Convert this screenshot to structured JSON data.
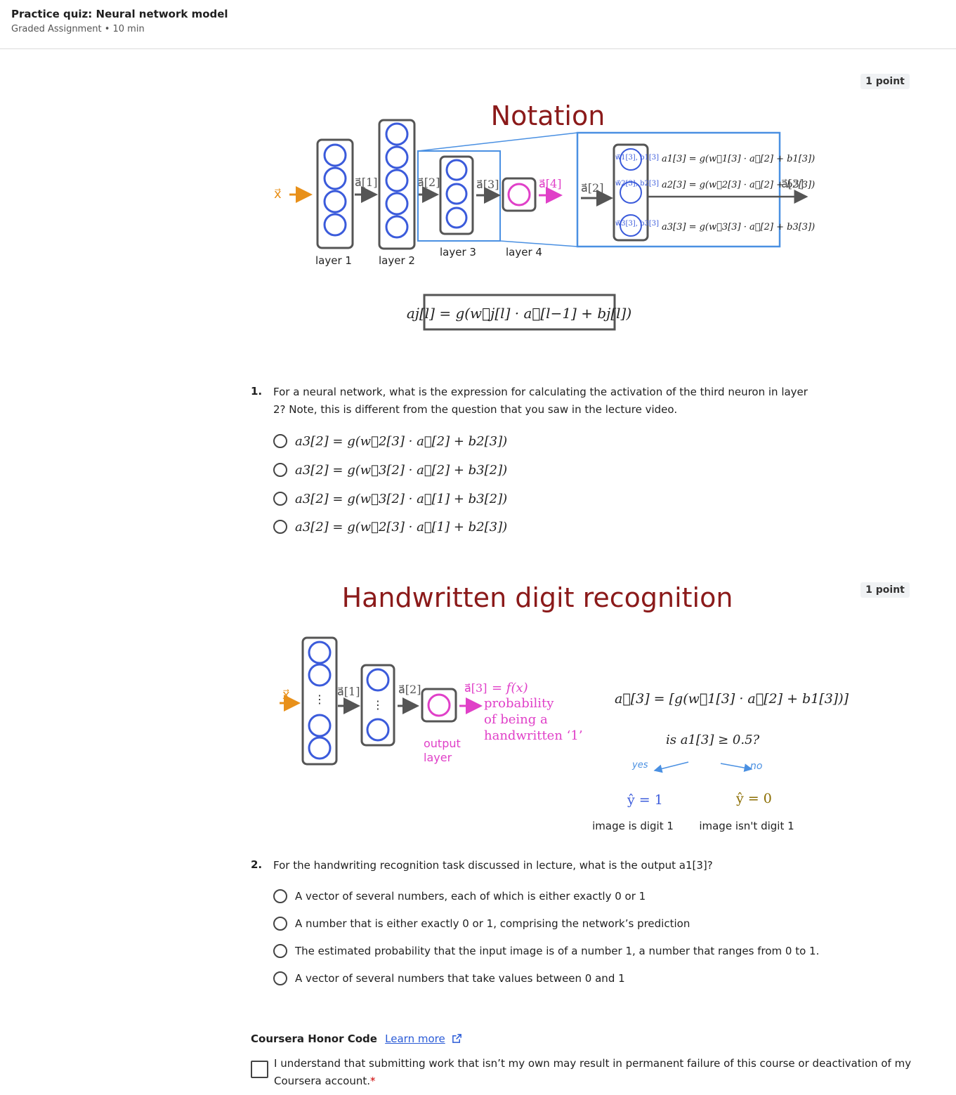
{
  "header": {
    "title": "Practice quiz: Neural network model",
    "subtitle": "Graded Assignment • 10 min"
  },
  "q1": {
    "points": "1 point",
    "number": "1.",
    "text": "For a neural network, what is the expression for calculating the activation of the third neuron in layer 2? Note, this is different from the question that you saw in the lecture video.",
    "figure": {
      "title": "Notation",
      "input_label": "x⃗",
      "arrow_labels": [
        "a⃗[1]",
        "a⃗[2]",
        "a⃗[3]",
        "a⃗[4]"
      ],
      "layer_labels": [
        "layer 1",
        "layer 2",
        "layer 3",
        "layer 4"
      ],
      "zoom_in": "a⃗[2]",
      "zoom_out": "a⃗[3]",
      "neuron_params": [
        "w⃗1[3], b1[3]",
        "w⃗2[3], b2[3]",
        "w⃗3[3], b3[3]"
      ],
      "zoom_eqs": [
        "a1[3] = g(w⃗1[3] · a⃗[2] + b1[3])",
        "a2[3] = g(w⃗2[3] · a⃗[2] + b2[3])",
        "a3[3] = g(w⃗3[3] · a⃗[2] + b3[3])"
      ],
      "general_eq": "aj[l] = g(w⃗j[l] · a⃗[l−1] + bj[l])"
    },
    "options": [
      "a3[2] = g(w⃗2[3] · a⃗[2] + b2[3])",
      "a3[2] = g(w⃗3[2] · a⃗[2] + b3[2])",
      "a3[2] = g(w⃗3[2] · a⃗[1] + b3[2])",
      "a3[2] = g(w⃗2[3] · a⃗[1] + b2[3])"
    ]
  },
  "q2": {
    "points": "1 point",
    "number": "2.",
    "text": "For the handwriting recognition task discussed in lecture, what is the output a1[3]?",
    "figure": {
      "title": "Handwritten digit recognition",
      "input_label": "x⃗",
      "arrow_labels": [
        "a⃗[1]",
        "a⃗[2]",
        "a⃗[3]"
      ],
      "fx": "= f(x)",
      "prob_lines": [
        "probability",
        "of being a",
        "handwritten ‘1’"
      ],
      "output_layer": [
        "output",
        "layer"
      ],
      "eq": "a⃗[3] = [g(w⃗1[3] · a⃗[2] + b1[3])]",
      "question": "is a1[3] ≥ 0.5?",
      "yes": "yes",
      "no": "no",
      "yhat1": "ŷ = 1",
      "yhat0": "ŷ = 0",
      "is_digit": "image is digit 1",
      "isnt_digit": "image isn't digit 1"
    },
    "options": [
      "A vector of several numbers, each of which is either exactly 0 or 1",
      "A number that is either exactly 0 or 1, comprising the network’s prediction",
      "The estimated probability that the input image is of a number 1, a number that ranges from 0 to 1.",
      "A vector of several numbers that take values between 0 and 1"
    ]
  },
  "honor": {
    "title": "Coursera Honor Code",
    "link": "Learn more",
    "text": "I understand that submitting work that isn’t my own may result in permanent failure of this course or deactivation of my Coursera account.",
    "required": "*"
  },
  "colors": {
    "title_red": "#8b1a1a",
    "neuron_blue": "#3b5bdb",
    "box_blue": "#4a90e2",
    "magenta": "#e040c8",
    "orange": "#e8901a"
  }
}
